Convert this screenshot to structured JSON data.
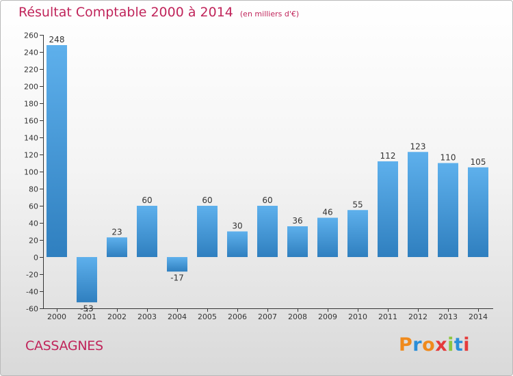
{
  "header": {
    "title": "Résultat Comptable 2000 à 2014",
    "subtitle": "(en milliers d'€)"
  },
  "footer": {
    "commune": "CASSAGNES",
    "logo_text": "Proxiti",
    "logo_colors": [
      "#f08a1c",
      "#2a8ed8",
      "#f08a1c",
      "#e53a3a",
      "#8cc63f",
      "#2a8ed8",
      "#e53a3a"
    ]
  },
  "chart_data": {
    "type": "bar",
    "title": "Résultat Comptable 2000 à 2014",
    "subtitle": "(en milliers d'€)",
    "categories": [
      "2000",
      "2001",
      "2002",
      "2003",
      "2004",
      "2005",
      "2006",
      "2007",
      "2008",
      "2009",
      "2010",
      "2011",
      "2012",
      "2013",
      "2014"
    ],
    "values": [
      248,
      -53,
      23,
      60,
      -17,
      60,
      30,
      60,
      36,
      46,
      55,
      112,
      123,
      110,
      105
    ],
    "data_labels": [
      "248",
      "-53",
      "23",
      "60",
      "-17",
      "60",
      "30",
      "60",
      "36",
      "46",
      "55",
      "112",
      "123",
      "110",
      "105"
    ],
    "ylim": [
      -60,
      260
    ],
    "yticks": [
      -60,
      -40,
      -20,
      0,
      20,
      40,
      60,
      80,
      100,
      120,
      140,
      160,
      180,
      200,
      220,
      240,
      260
    ],
    "grid": false,
    "colors": {
      "bar_top": "#5eb0ec",
      "bar_bottom": "#2f7fbf",
      "axis": "#333333",
      "text": "#333333"
    }
  }
}
